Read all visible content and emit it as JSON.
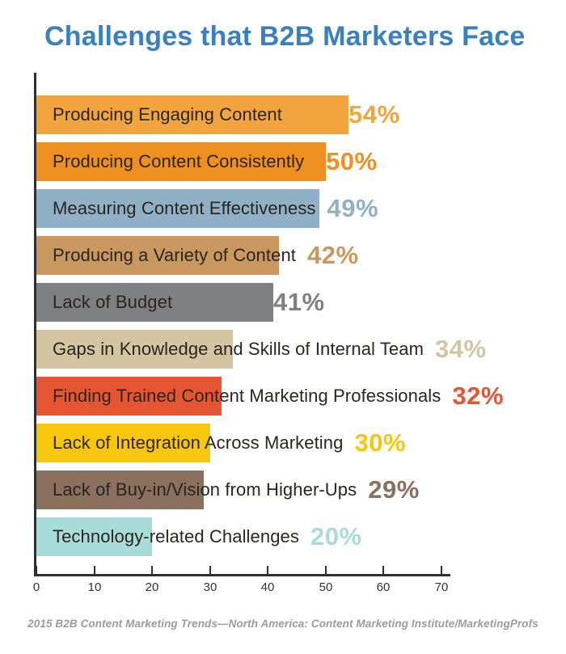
{
  "title": "Challenges that B2B Marketers Face",
  "footer": "2015 B2B Content Marketing Trends—North America: Content Marketing Institute/MarketingProfs",
  "colors": {
    "title": "#3a80c1",
    "axis": "#2f2f2f",
    "bar_label_text": "#2b241f",
    "footer_text": "#9b9b9b",
    "background": "#ffffff"
  },
  "chart_data": {
    "type": "bar",
    "orientation": "horizontal",
    "title": "Challenges that B2B Marketers Face",
    "xlabel": "",
    "ylabel": "",
    "xlim": [
      0,
      70
    ],
    "x_ticks": [
      0,
      10,
      20,
      30,
      40,
      50,
      60,
      70
    ],
    "grid": false,
    "legend": false,
    "value_labels": "inline-right",
    "bars": [
      {
        "label": "Producing Engaging Content",
        "value": 54,
        "display": "54%",
        "color": "#f2a43e"
      },
      {
        "label": "Producing Content Consistently",
        "value": 50,
        "display": "50%",
        "color": "#ee8f20"
      },
      {
        "label": "Measuring Content Effectiveness",
        "value": 49,
        "display": "49%",
        "color": "#90b0c6"
      },
      {
        "label": "Producing a Variety of Content",
        "value": 42,
        "display": "42%",
        "color": "#c8985f"
      },
      {
        "label": "Lack of Budget",
        "value": 41,
        "display": "41%",
        "color": "#7f8084"
      },
      {
        "label": "Gaps in Knowledge and Skills of Internal Team",
        "value": 34,
        "display": "34%",
        "color": "#d3c4a2"
      },
      {
        "label": "Finding Trained Content Marketing Professionals",
        "value": 32,
        "display": "32%",
        "color": "#e65531"
      },
      {
        "label": "Lack of Integration Across Marketing",
        "value": 30,
        "display": "30%",
        "color": "#f8c70d"
      },
      {
        "label": "Lack of Buy-in/Vision from Higher-Ups",
        "value": 29,
        "display": "29%",
        "color": "#8b705f"
      },
      {
        "label": "Technology-related Challenges",
        "value": 20,
        "display": "20%",
        "color": "#a7dcd8"
      }
    ]
  }
}
